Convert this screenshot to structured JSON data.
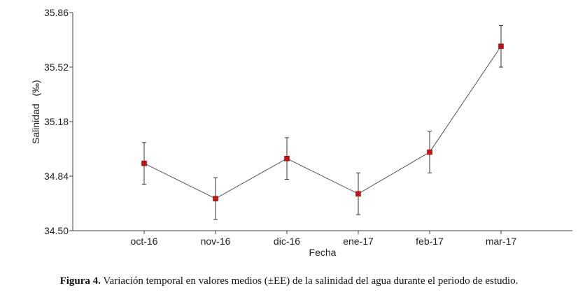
{
  "chart_data": {
    "type": "line",
    "categories": [
      "oct-16",
      "nov-16",
      "dic-16",
      "ene-17",
      "feb-17",
      "mar-17"
    ],
    "series": [
      {
        "values": [
          34.92,
          34.7,
          34.95,
          34.73,
          34.99,
          35.65
        ],
        "error": [
          0.13,
          0.13,
          0.13,
          0.13,
          0.13,
          0.13
        ]
      }
    ],
    "xlabel": "Fecha",
    "ylabel": "Salinidad",
    "ylabel_unit": "(‰)",
    "ylim": [
      34.5,
      35.86
    ],
    "yticks": [
      "34.50",
      "34.84",
      "35.18",
      "35.52",
      "35.86"
    ],
    "marker_color": "#cc1111",
    "line_color": "#555555",
    "grid": false
  },
  "caption": {
    "label": "Figura 4.",
    "text": " Variación temporal en valores medios (±EE) de la salinidad del agua durante el periodo de estudio."
  }
}
